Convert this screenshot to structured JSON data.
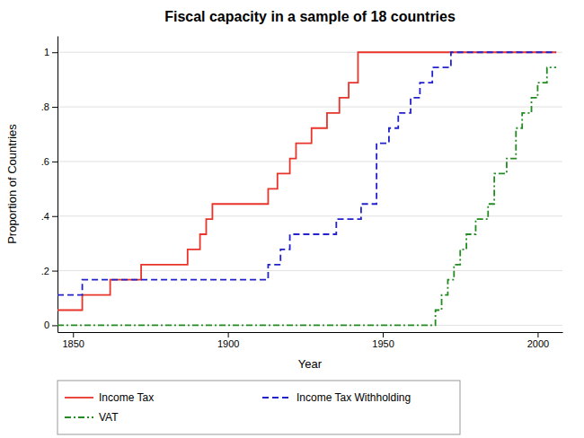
{
  "chart_data": {
    "type": "line",
    "title": "Fiscal capacity in a sample of 18 countries",
    "x_label": "Year",
    "y_label": "Proportion of Countries",
    "xlim": [
      1845,
      2008
    ],
    "ylim": [
      -0.025,
      1.06
    ],
    "xticks": [
      1850,
      1900,
      1950,
      2000
    ],
    "yticks": [
      0,
      {
        "value": 0.2,
        "label": ".2"
      },
      {
        "value": 0.4,
        "label": ".4"
      },
      {
        "value": 0.6,
        "label": ".6"
      },
      {
        "value": 0.8,
        "label": ".8"
      },
      1
    ],
    "grid": true,
    "legend": "bottom",
    "series": [
      {
        "name": "Income Tax",
        "color": "#e8342a",
        "line_style": "solid",
        "x": [
          1845,
          1853,
          1853,
          1862,
          1862,
          1872,
          1872,
          1887,
          1887,
          1891,
          1891,
          1893,
          1893,
          1895,
          1895,
          1913,
          1913,
          1916,
          1916,
          1920,
          1920,
          1922,
          1922,
          1927,
          1927,
          1932,
          1932,
          1936,
          1936,
          1939,
          1939,
          1942,
          1942,
          2006
        ],
        "values": [
          0.0556,
          0.0556,
          0.1111,
          0.1111,
          0.1667,
          0.1667,
          0.2222,
          0.2222,
          0.2778,
          0.2778,
          0.3333,
          0.3333,
          0.3889,
          0.3889,
          0.4444,
          0.4444,
          0.5,
          0.5,
          0.5556,
          0.5556,
          0.6111,
          0.6111,
          0.6667,
          0.6667,
          0.7222,
          0.7222,
          0.7778,
          0.7778,
          0.8333,
          0.8333,
          0.8889,
          0.8889,
          1.0,
          1.0
        ]
      },
      {
        "name": "Income Tax Withholding",
        "color": "#2222cc",
        "line_style": "dashed",
        "x": [
          1845,
          1853,
          1853,
          1913,
          1913,
          1917,
          1917,
          1920,
          1920,
          1935,
          1935,
          1943,
          1943,
          1948,
          1948,
          1952,
          1952,
          1955,
          1955,
          1959,
          1959,
          1962,
          1962,
          1966,
          1966,
          1972,
          1972,
          2006
        ],
        "values": [
          0.1111,
          0.1111,
          0.1667,
          0.1667,
          0.2222,
          0.2222,
          0.2778,
          0.2778,
          0.3333,
          0.3333,
          0.3889,
          0.3889,
          0.4444,
          0.4444,
          0.6667,
          0.6667,
          0.7222,
          0.7222,
          0.7778,
          0.7778,
          0.8333,
          0.8333,
          0.8889,
          0.8889,
          0.9444,
          0.9444,
          1.0,
          1.0
        ]
      },
      {
        "name": "VAT",
        "color": "#228b22",
        "line_style": "dashdot",
        "x": [
          1845,
          1967,
          1967,
          1969,
          1969,
          1971,
          1971,
          1973,
          1973,
          1975,
          1975,
          1977,
          1977,
          1980,
          1980,
          1984,
          1984,
          1986,
          1986,
          1990,
          1990,
          1993,
          1993,
          1995,
          1995,
          1998,
          1998,
          2000,
          2000,
          2003,
          2003,
          2006
        ],
        "values": [
          0.0,
          0.0,
          0.0556,
          0.0556,
          0.1111,
          0.1111,
          0.1667,
          0.1667,
          0.2222,
          0.2222,
          0.2778,
          0.2778,
          0.3333,
          0.3333,
          0.3889,
          0.3889,
          0.4444,
          0.4444,
          0.5556,
          0.5556,
          0.6111,
          0.6111,
          0.7222,
          0.7222,
          0.7778,
          0.7778,
          0.8333,
          0.8333,
          0.8889,
          0.8889,
          0.9444,
          0.9444
        ]
      }
    ]
  }
}
